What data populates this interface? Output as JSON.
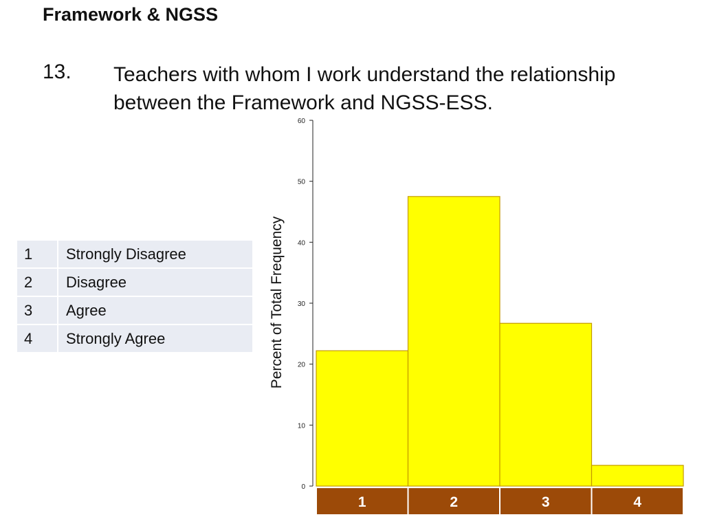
{
  "slide": {
    "title": "Framework & NGSS",
    "question_number": "13.",
    "question_text": "Teachers with whom I work understand the relationship between the Framework and NGSS-ESS."
  },
  "legend": [
    {
      "key": "1",
      "label": "Strongly Disagree"
    },
    {
      "key": "2",
      "label": "Disagree"
    },
    {
      "key": "3",
      "label": "Agree"
    },
    {
      "key": "4",
      "label": "Strongly Agree"
    }
  ],
  "chart_data": {
    "type": "bar",
    "categories": [
      "1",
      "2",
      "3",
      "4"
    ],
    "values": [
      22.2,
      47.5,
      26.7,
      3.4
    ],
    "ylabel": "Percent of Total Frequency",
    "ylim": [
      0,
      60
    ],
    "yticks": [
      0,
      10,
      20,
      30,
      40,
      50,
      60
    ],
    "grid": false,
    "bar_color": "#ffff00",
    "bar_border_color": "#c49a00",
    "category_band_color": "#9c4a08"
  }
}
